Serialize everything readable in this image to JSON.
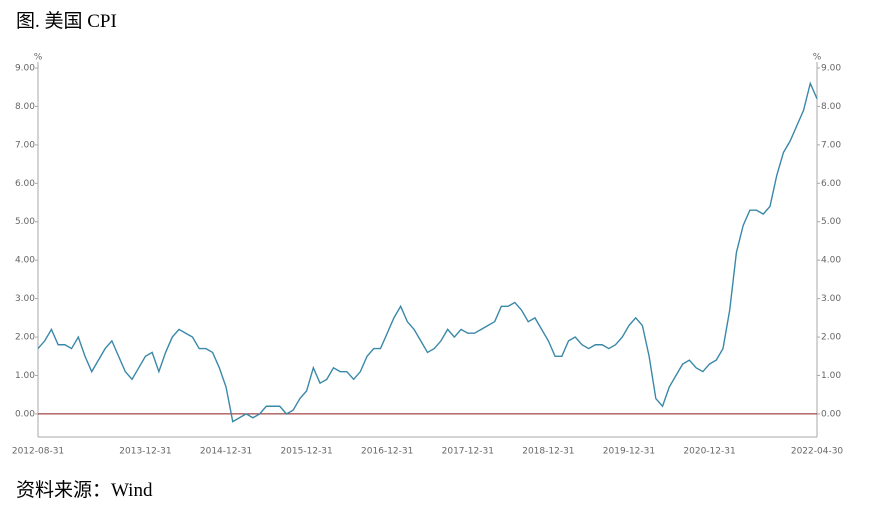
{
  "title": "图. 美国 CPI",
  "source": "资料来源：Wind",
  "chart_data": {
    "type": "line",
    "y_unit": "%",
    "y2_unit": "%",
    "categories": [
      "2012-08-31",
      null,
      null,
      null,
      null,
      null,
      null,
      null,
      null,
      null,
      null,
      null,
      null,
      null,
      null,
      null,
      "2013-12-31",
      null,
      null,
      null,
      null,
      null,
      null,
      null,
      null,
      null,
      null,
      null,
      "2014-12-31",
      null,
      null,
      null,
      null,
      null,
      null,
      null,
      null,
      null,
      null,
      null,
      "2015-12-31",
      null,
      null,
      null,
      null,
      null,
      null,
      null,
      null,
      null,
      null,
      null,
      "2016-12-31",
      null,
      null,
      null,
      null,
      null,
      null,
      null,
      null,
      null,
      null,
      null,
      "2017-12-31",
      null,
      null,
      null,
      null,
      null,
      null,
      null,
      null,
      null,
      null,
      null,
      "2018-12-31",
      null,
      null,
      null,
      null,
      null,
      null,
      null,
      null,
      null,
      null,
      null,
      "2019-12-31",
      null,
      null,
      null,
      null,
      null,
      null,
      null,
      null,
      null,
      null,
      null,
      "2020-12-31",
      null,
      null,
      null,
      null,
      null,
      null,
      null,
      null,
      null,
      null,
      null,
      null,
      null,
      null,
      null,
      "2022-04-30"
    ],
    "series": [
      {
        "color": "#3a88a8",
        "values": [
          1.7,
          1.9,
          2.2,
          1.8,
          1.8,
          1.7,
          2.0,
          1.5,
          1.1,
          1.4,
          1.7,
          1.9,
          1.5,
          1.1,
          0.9,
          1.2,
          1.5,
          1.6,
          1.1,
          1.6,
          2.0,
          2.2,
          2.1,
          2.0,
          1.7,
          1.7,
          1.6,
          1.2,
          0.7,
          -0.2,
          -0.1,
          0.0,
          -0.1,
          0.0,
          0.2,
          0.2,
          0.2,
          0.0,
          0.1,
          0.4,
          0.6,
          1.2,
          0.8,
          0.9,
          1.2,
          1.1,
          1.1,
          0.9,
          1.1,
          1.5,
          1.7,
          1.7,
          2.1,
          2.5,
          2.8,
          2.4,
          2.2,
          1.9,
          1.6,
          1.7,
          1.9,
          2.2,
          2.0,
          2.2,
          2.1,
          2.1,
          2.2,
          2.3,
          2.4,
          2.8,
          2.8,
          2.9,
          2.7,
          2.4,
          2.5,
          2.2,
          1.9,
          1.5,
          1.5,
          1.9,
          2.0,
          1.8,
          1.7,
          1.8,
          1.8,
          1.7,
          1.8,
          2.0,
          2.3,
          2.5,
          2.3,
          1.5,
          0.4,
          0.2,
          0.7,
          1.0,
          1.3,
          1.4,
          1.2,
          1.1,
          1.3,
          1.4,
          1.7,
          2.7,
          4.2,
          4.9,
          5.3,
          5.3,
          5.2,
          5.4,
          6.2,
          6.8,
          7.1,
          7.5,
          7.9,
          8.6,
          8.2
        ]
      }
    ],
    "ylim": [
      -0.6,
      9.2
    ],
    "yticks": [
      {
        "value": 0,
        "label": "0.00"
      },
      {
        "value": 1,
        "label": "1.00"
      },
      {
        "value": 2,
        "label": "2.00"
      },
      {
        "value": 3,
        "label": "3.00"
      },
      {
        "value": 4,
        "label": "4.00"
      },
      {
        "value": 5,
        "label": "5.00"
      },
      {
        "value": 6,
        "label": "6.00"
      },
      {
        "value": 7,
        "label": "7.00"
      },
      {
        "value": 8,
        "label": "8.00"
      },
      {
        "value": 9,
        "label": "9.00"
      }
    ],
    "y2lim": [
      -0.6,
      9.2
    ],
    "y2ticks": [
      {
        "value": 0,
        "label": "0.00"
      },
      {
        "value": 1,
        "label": "1.00"
      },
      {
        "value": 2,
        "label": "2.00"
      },
      {
        "value": 3,
        "label": "3.00"
      },
      {
        "value": 4,
        "label": "4.00"
      },
      {
        "value": 5,
        "label": "5.00"
      },
      {
        "value": 6,
        "label": "6.00"
      },
      {
        "value": 7,
        "label": "7.00"
      },
      {
        "value": 8,
        "label": "8.00"
      },
      {
        "value": 9,
        "label": "9.00"
      }
    ],
    "zero_line_color": "#8b1a1a"
  }
}
